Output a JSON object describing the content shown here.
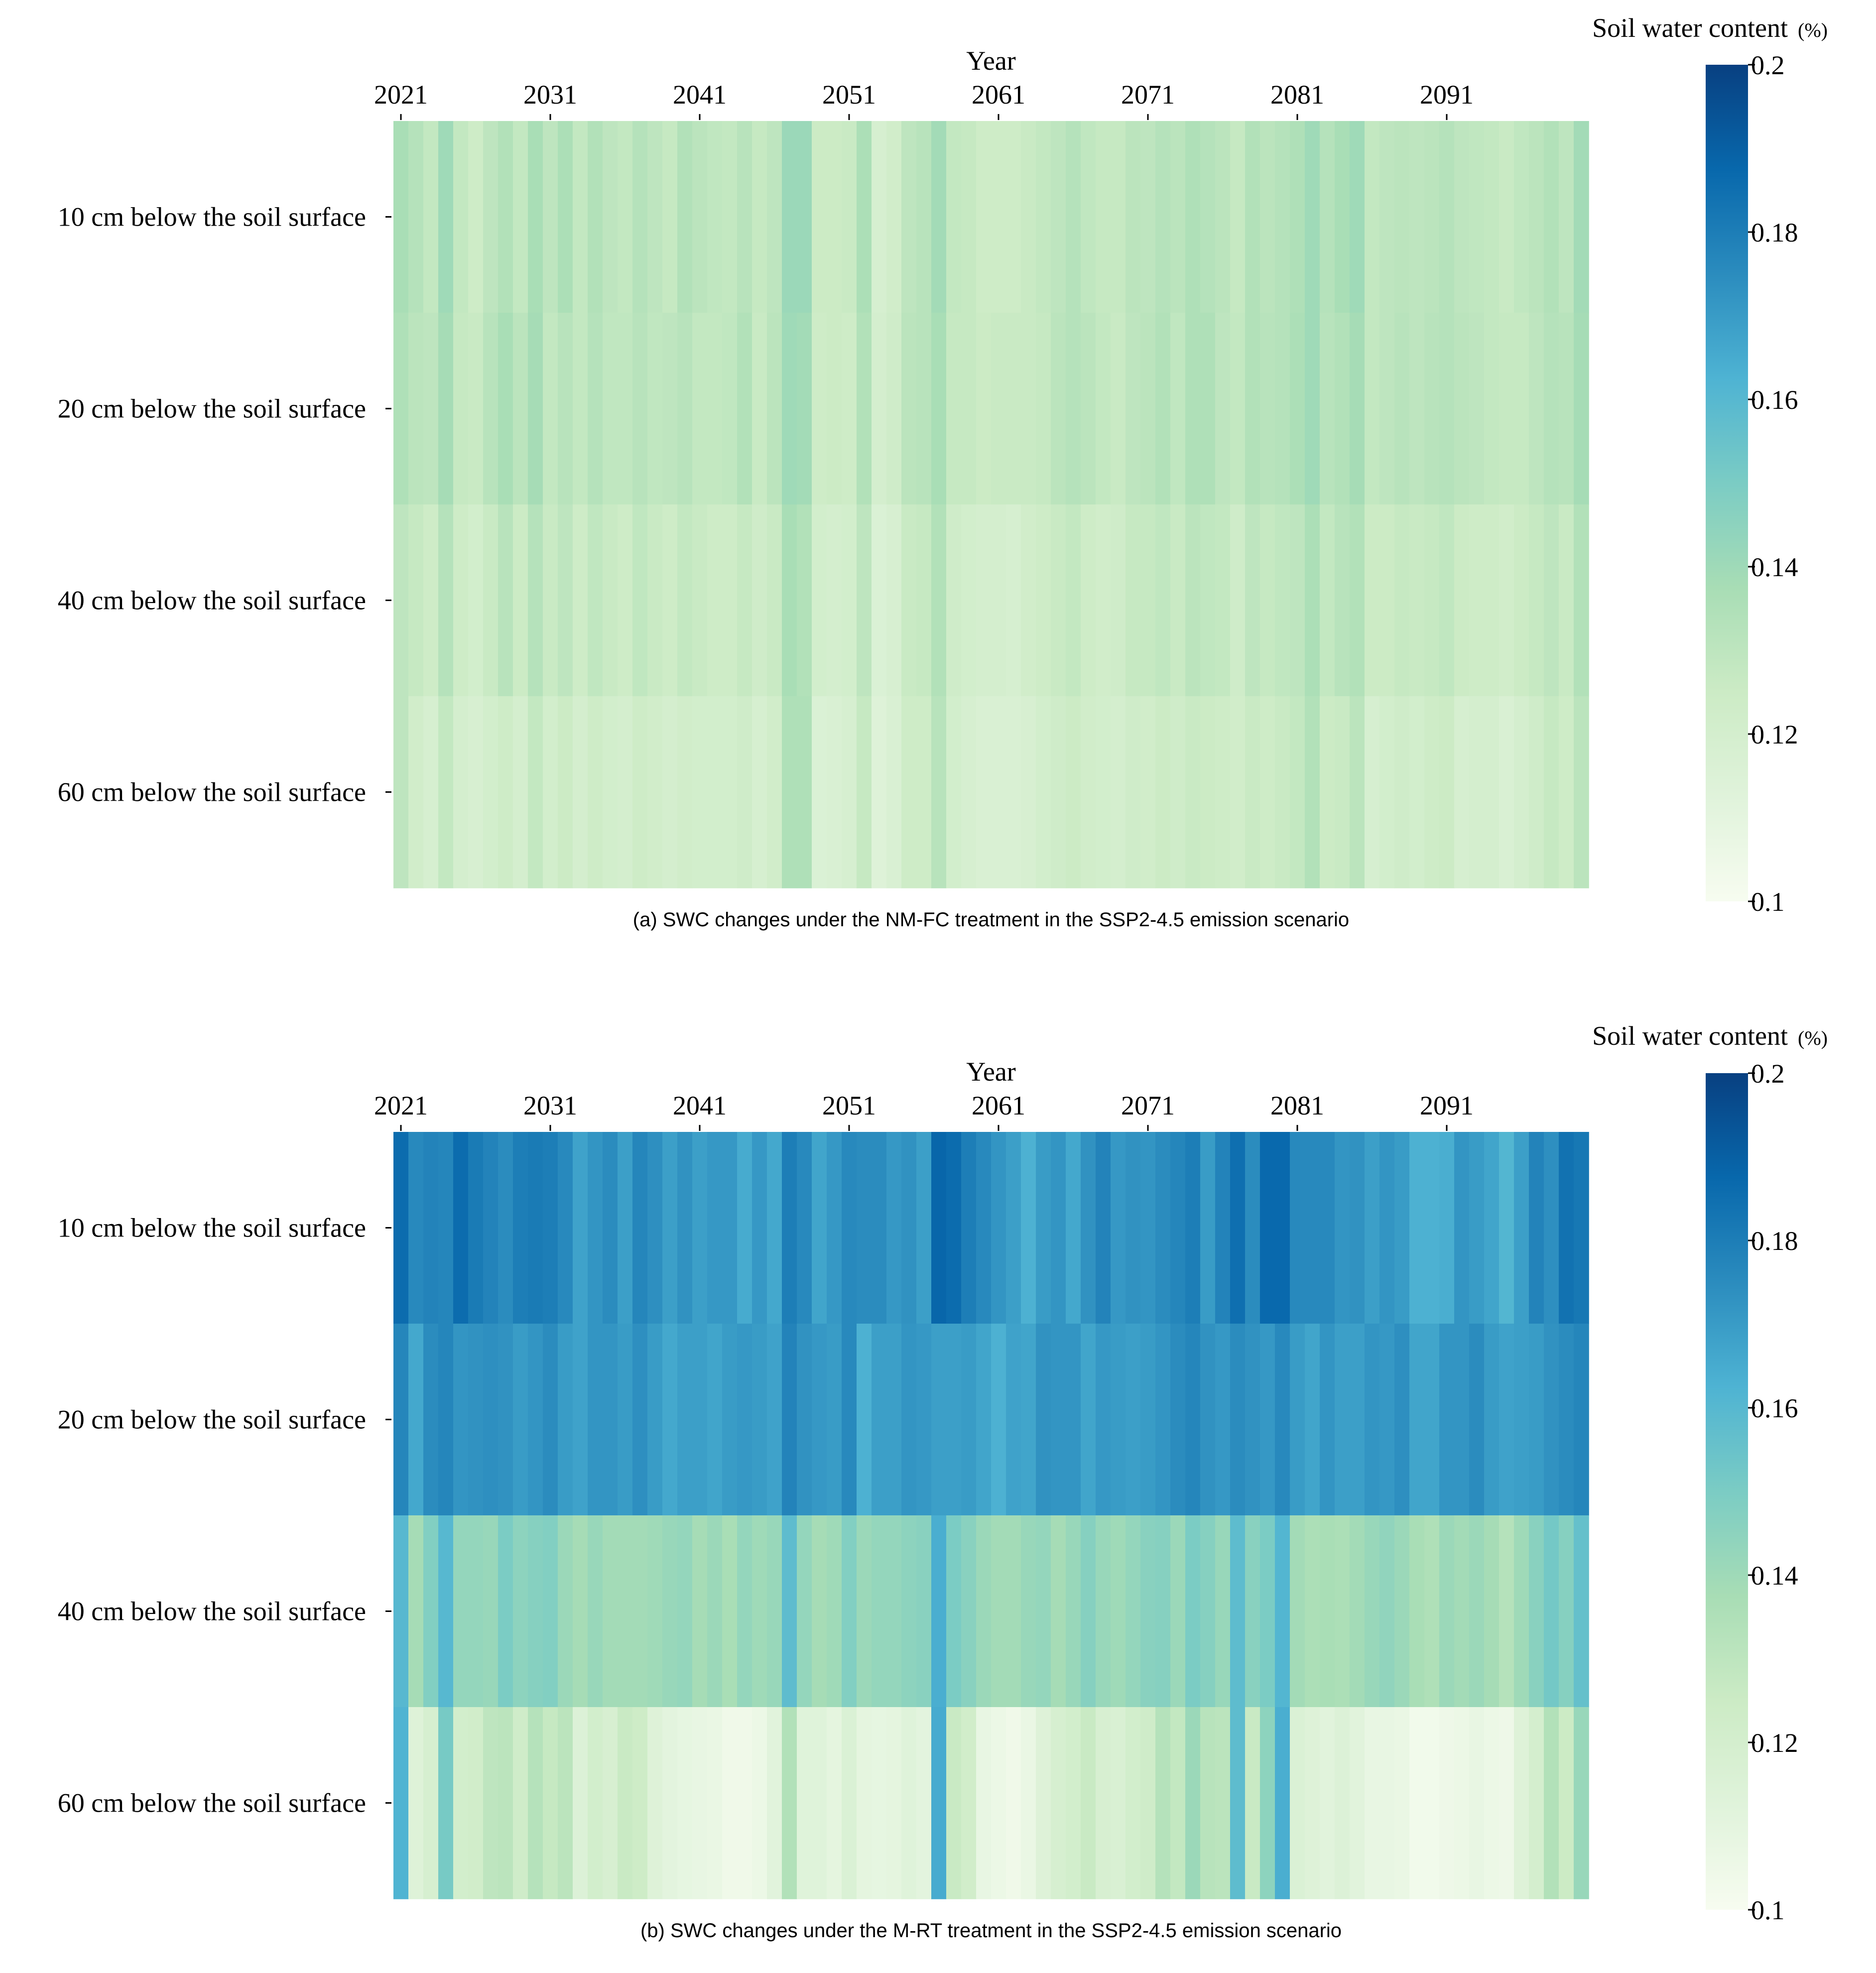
{
  "chart_data": [
    {
      "type": "heatmap",
      "panel": "a",
      "caption": "(a) SWC changes under the NM-FC treatment in the SSP2-4.5 emission scenario",
      "xlabel": "Year",
      "x_tick_labels": [
        "2021",
        "2031",
        "2041",
        "2051",
        "2061",
        "2071",
        "2081",
        "2091"
      ],
      "years": [
        2021,
        2100
      ],
      "rows": [
        "10 cm below the soil surface",
        "20 cm below the soil surface",
        "40 cm below the soil surface",
        "60 cm below the soil surface"
      ],
      "colorbar": {
        "title": "Soil water content",
        "unit": "(%)",
        "range": [
          0.1,
          0.2
        ],
        "tick_labels": [
          "0.2",
          "0.18",
          "0.16",
          "0.14",
          "0.12",
          "0.1"
        ],
        "ticks": [
          0.2,
          0.18,
          0.16,
          0.14,
          0.12,
          0.1
        ]
      },
      "values": [
        [
          0.137,
          0.133,
          0.128,
          0.14,
          0.128,
          0.124,
          0.13,
          0.134,
          0.128,
          0.137,
          0.13,
          0.136,
          0.128,
          0.134,
          0.13,
          0.128,
          0.133,
          0.13,
          0.127,
          0.134,
          0.131,
          0.129,
          0.128,
          0.132,
          0.127,
          0.13,
          0.141,
          0.141,
          0.125,
          0.125,
          0.126,
          0.136,
          0.119,
          0.122,
          0.13,
          0.132,
          0.139,
          0.128,
          0.127,
          0.124,
          0.124,
          0.124,
          0.126,
          0.128,
          0.13,
          0.133,
          0.129,
          0.127,
          0.127,
          0.131,
          0.13,
          0.133,
          0.131,
          0.135,
          0.133,
          0.131,
          0.127,
          0.134,
          0.131,
          0.133,
          0.135,
          0.14,
          0.133,
          0.137,
          0.14,
          0.128,
          0.13,
          0.131,
          0.13,
          0.131,
          0.133,
          0.13,
          0.129,
          0.128,
          0.126,
          0.129,
          0.131,
          0.134,
          0.13,
          0.139
        ],
        [
          0.135,
          0.131,
          0.13,
          0.138,
          0.127,
          0.126,
          0.132,
          0.137,
          0.131,
          0.138,
          0.128,
          0.132,
          0.128,
          0.133,
          0.129,
          0.129,
          0.132,
          0.129,
          0.13,
          0.132,
          0.128,
          0.128,
          0.129,
          0.134,
          0.126,
          0.131,
          0.14,
          0.139,
          0.124,
          0.125,
          0.124,
          0.134,
          0.12,
          0.123,
          0.131,
          0.132,
          0.137,
          0.127,
          0.127,
          0.125,
          0.126,
          0.126,
          0.126,
          0.127,
          0.131,
          0.133,
          0.131,
          0.128,
          0.126,
          0.13,
          0.131,
          0.134,
          0.129,
          0.135,
          0.135,
          0.13,
          0.128,
          0.134,
          0.132,
          0.133,
          0.136,
          0.14,
          0.132,
          0.134,
          0.138,
          0.128,
          0.13,
          0.132,
          0.13,
          0.132,
          0.133,
          0.131,
          0.13,
          0.128,
          0.127,
          0.127,
          0.13,
          0.133,
          0.132,
          0.138
        ],
        [
          0.13,
          0.127,
          0.124,
          0.133,
          0.124,
          0.121,
          0.126,
          0.132,
          0.125,
          0.133,
          0.126,
          0.13,
          0.124,
          0.129,
          0.126,
          0.124,
          0.129,
          0.126,
          0.124,
          0.128,
          0.126,
          0.124,
          0.124,
          0.127,
          0.123,
          0.126,
          0.137,
          0.134,
          0.121,
          0.12,
          0.121,
          0.13,
          0.116,
          0.118,
          0.126,
          0.127,
          0.134,
          0.123,
          0.121,
          0.12,
          0.12,
          0.119,
          0.122,
          0.124,
          0.126,
          0.128,
          0.124,
          0.122,
          0.123,
          0.127,
          0.127,
          0.129,
          0.126,
          0.131,
          0.129,
          0.128,
          0.123,
          0.13,
          0.127,
          0.129,
          0.13,
          0.136,
          0.128,
          0.132,
          0.134,
          0.125,
          0.125,
          0.127,
          0.126,
          0.127,
          0.129,
          0.125,
          0.124,
          0.124,
          0.122,
          0.125,
          0.127,
          0.13,
          0.126,
          0.134
        ],
        [
          0.13,
          0.122,
          0.119,
          0.128,
          0.12,
          0.118,
          0.121,
          0.124,
          0.12,
          0.128,
          0.121,
          0.125,
          0.12,
          0.124,
          0.121,
          0.12,
          0.124,
          0.122,
          0.12,
          0.122,
          0.121,
          0.121,
          0.121,
          0.123,
          0.119,
          0.122,
          0.135,
          0.135,
          0.116,
          0.117,
          0.119,
          0.127,
          0.114,
          0.117,
          0.124,
          0.124,
          0.132,
          0.121,
          0.119,
          0.117,
          0.117,
          0.117,
          0.118,
          0.121,
          0.123,
          0.125,
          0.122,
          0.121,
          0.12,
          0.123,
          0.122,
          0.125,
          0.123,
          0.126,
          0.125,
          0.124,
          0.122,
          0.126,
          0.124,
          0.126,
          0.128,
          0.134,
          0.125,
          0.126,
          0.131,
          0.119,
          0.121,
          0.123,
          0.121,
          0.124,
          0.125,
          0.119,
          0.12,
          0.12,
          0.117,
          0.12,
          0.123,
          0.127,
          0.124,
          0.131
        ]
      ]
    },
    {
      "type": "heatmap",
      "panel": "b",
      "caption": "(b) SWC changes under the M-RT treatment in the SSP2-4.5 emission scenario",
      "xlabel": "Year",
      "x_tick_labels": [
        "2021",
        "2031",
        "2041",
        "2051",
        "2061",
        "2071",
        "2081",
        "2091"
      ],
      "years": [
        2021,
        2100
      ],
      "rows": [
        "10 cm below the soil surface",
        "20 cm below the soil surface",
        "40 cm below the soil surface",
        "60 cm below the soil surface"
      ],
      "colorbar": {
        "title": "Soil water content",
        "unit": "(%)",
        "range": [
          0.1,
          0.2
        ],
        "tick_labels": [
          "0.2",
          "0.18",
          "0.16",
          "0.14",
          "0.12",
          "0.1"
        ],
        "ticks": [
          0.2,
          0.18,
          0.16,
          0.14,
          0.12,
          0.1
        ]
      },
      "values": [
        [
          0.186,
          0.176,
          0.178,
          0.177,
          0.186,
          0.181,
          0.178,
          0.175,
          0.18,
          0.181,
          0.18,
          0.176,
          0.168,
          0.172,
          0.175,
          0.169,
          0.177,
          0.174,
          0.169,
          0.173,
          0.169,
          0.171,
          0.171,
          0.165,
          0.171,
          0.166,
          0.18,
          0.176,
          0.167,
          0.171,
          0.176,
          0.175,
          0.175,
          0.171,
          0.173,
          0.169,
          0.188,
          0.186,
          0.18,
          0.176,
          0.172,
          0.169,
          0.163,
          0.17,
          0.172,
          0.166,
          0.173,
          0.178,
          0.171,
          0.173,
          0.172,
          0.175,
          0.177,
          0.18,
          0.17,
          0.178,
          0.185,
          0.175,
          0.187,
          0.187,
          0.176,
          0.176,
          0.176,
          0.172,
          0.173,
          0.169,
          0.172,
          0.17,
          0.163,
          0.163,
          0.164,
          0.172,
          0.17,
          0.167,
          0.161,
          0.169,
          0.178,
          0.174,
          0.184,
          0.182
        ],
        [
          0.177,
          0.166,
          0.175,
          0.177,
          0.172,
          0.173,
          0.174,
          0.173,
          0.17,
          0.172,
          0.175,
          0.17,
          0.168,
          0.172,
          0.172,
          0.17,
          0.174,
          0.17,
          0.166,
          0.169,
          0.169,
          0.167,
          0.17,
          0.171,
          0.17,
          0.168,
          0.178,
          0.173,
          0.171,
          0.17,
          0.176,
          0.163,
          0.169,
          0.169,
          0.172,
          0.171,
          0.169,
          0.169,
          0.17,
          0.167,
          0.163,
          0.168,
          0.167,
          0.173,
          0.172,
          0.172,
          0.167,
          0.171,
          0.17,
          0.169,
          0.17,
          0.172,
          0.175,
          0.177,
          0.173,
          0.171,
          0.175,
          0.173,
          0.171,
          0.176,
          0.17,
          0.167,
          0.172,
          0.169,
          0.169,
          0.172,
          0.171,
          0.174,
          0.167,
          0.167,
          0.172,
          0.172,
          0.175,
          0.17,
          0.168,
          0.169,
          0.17,
          0.173,
          0.175,
          0.177
        ],
        [
          0.16,
          0.138,
          0.148,
          0.16,
          0.143,
          0.143,
          0.142,
          0.15,
          0.145,
          0.147,
          0.148,
          0.141,
          0.138,
          0.142,
          0.139,
          0.139,
          0.139,
          0.14,
          0.142,
          0.143,
          0.138,
          0.141,
          0.137,
          0.143,
          0.14,
          0.142,
          0.158,
          0.143,
          0.138,
          0.14,
          0.148,
          0.141,
          0.143,
          0.143,
          0.145,
          0.146,
          0.164,
          0.15,
          0.146,
          0.141,
          0.139,
          0.139,
          0.142,
          0.143,
          0.138,
          0.142,
          0.147,
          0.142,
          0.14,
          0.143,
          0.146,
          0.147,
          0.141,
          0.15,
          0.147,
          0.142,
          0.158,
          0.146,
          0.15,
          0.161,
          0.139,
          0.136,
          0.137,
          0.136,
          0.139,
          0.142,
          0.144,
          0.141,
          0.137,
          0.135,
          0.141,
          0.139,
          0.141,
          0.138,
          0.133,
          0.14,
          0.146,
          0.152,
          0.147,
          0.156
        ],
        [
          0.162,
          0.114,
          0.119,
          0.151,
          0.121,
          0.122,
          0.13,
          0.131,
          0.123,
          0.133,
          0.127,
          0.131,
          0.115,
          0.121,
          0.118,
          0.126,
          0.124,
          0.114,
          0.111,
          0.109,
          0.108,
          0.107,
          0.104,
          0.104,
          0.106,
          0.112,
          0.134,
          0.113,
          0.113,
          0.11,
          0.116,
          0.11,
          0.109,
          0.11,
          0.113,
          0.111,
          0.165,
          0.126,
          0.122,
          0.108,
          0.106,
          0.104,
          0.107,
          0.114,
          0.119,
          0.121,
          0.126,
          0.118,
          0.117,
          0.121,
          0.123,
          0.133,
          0.128,
          0.141,
          0.132,
          0.131,
          0.158,
          0.126,
          0.145,
          0.164,
          0.116,
          0.114,
          0.112,
          0.115,
          0.112,
          0.108,
          0.108,
          0.107,
          0.103,
          0.103,
          0.105,
          0.106,
          0.108,
          0.106,
          0.105,
          0.114,
          0.12,
          0.134,
          0.125,
          0.142
        ]
      ]
    }
  ]
}
